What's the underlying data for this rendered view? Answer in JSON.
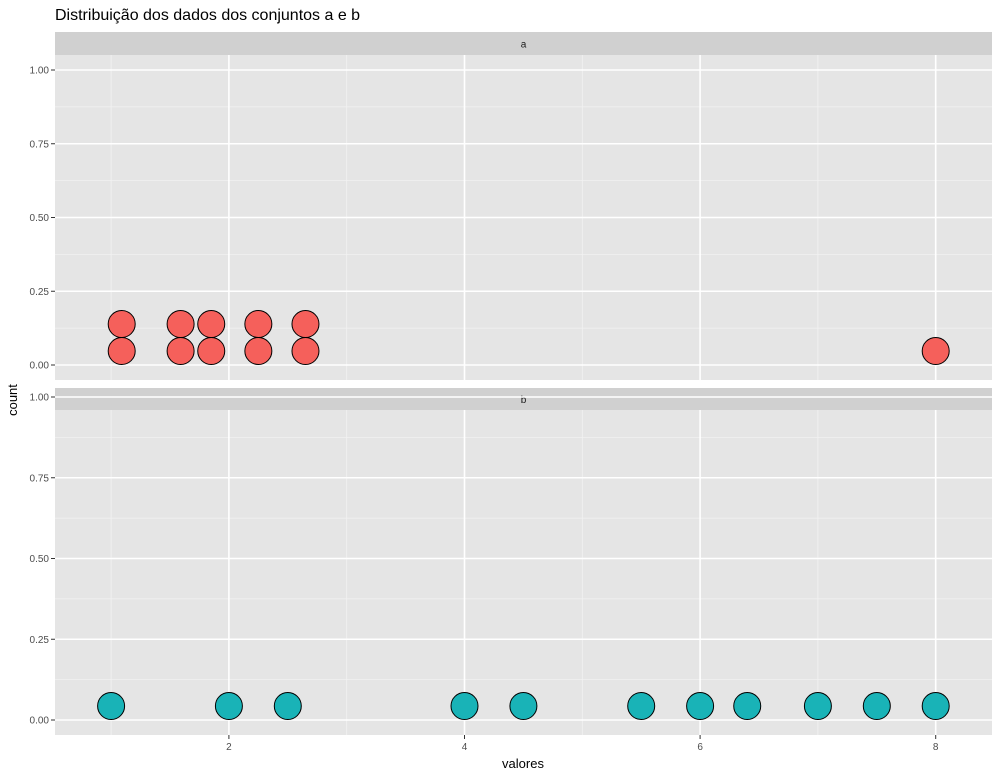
{
  "chart_data": {
    "type": "scatter",
    "subtype": "dotplot",
    "title": "Distribuição dos dados dos conjuntos a e b",
    "xlabel": "valores",
    "ylabel": "count",
    "xlim": [
      0.7,
      8.5
    ],
    "ylim": [
      -0.05,
      1.05
    ],
    "x_ticks": [
      2,
      4,
      6,
      8
    ],
    "x_tick_labels": [
      "2",
      "4",
      "6",
      "8"
    ],
    "y_ticks": [
      0.0,
      0.25,
      0.5,
      0.75,
      1.0
    ],
    "y_tick_labels": [
      "0.00",
      "0.25",
      "0.50",
      "0.75",
      "1.00"
    ],
    "grid": true,
    "facets": [
      {
        "label": "a",
        "color": "#F8766D",
        "bins": [
          {
            "x": 1.09,
            "count": 2
          },
          {
            "x": 1.59,
            "count": 2
          },
          {
            "x": 1.85,
            "count": 2
          },
          {
            "x": 2.25,
            "count": 2
          },
          {
            "x": 2.65,
            "count": 2
          },
          {
            "x": 8.0,
            "count": 1
          }
        ]
      },
      {
        "label": "b",
        "color": "#00BFC4",
        "bins": [
          {
            "x": 1.0,
            "count": 1
          },
          {
            "x": 2.0,
            "count": 1
          },
          {
            "x": 2.5,
            "count": 1
          },
          {
            "x": 4.0,
            "count": 1
          },
          {
            "x": 4.5,
            "count": 1
          },
          {
            "x": 5.5,
            "count": 1
          },
          {
            "x": 6.0,
            "count": 1
          },
          {
            "x": 6.4,
            "count": 1
          },
          {
            "x": 7.0,
            "count": 1
          },
          {
            "x": 7.5,
            "count": 1
          },
          {
            "x": 8.0,
            "count": 1
          }
        ]
      }
    ]
  },
  "colors": {
    "panel_bg": "#E5E5E5",
    "strip_bg": "#D0D0D0",
    "grid_major": "#FFFFFF",
    "dot_a": "#F5605B",
    "dot_b": "#19B3B7",
    "dot_stroke": "#000000"
  }
}
